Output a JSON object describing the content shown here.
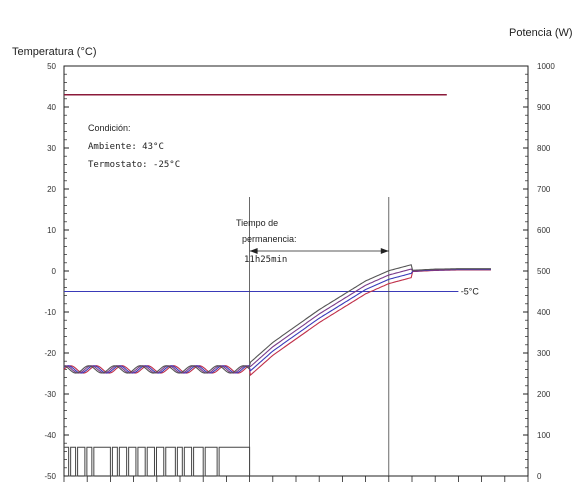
{
  "chart_data": {
    "type": "line",
    "ylabel_left": "Temperatura (°C)",
    "ylabel_right": "Potencia (W)",
    "ylim_left": [
      -50,
      50
    ],
    "ylim_right": [
      0,
      1000
    ],
    "left_ticks": [
      "50",
      "40",
      "30",
      "20",
      "10",
      "0",
      "-10",
      "-20",
      "-30",
      "-40",
      "-50"
    ],
    "right_ticks": [
      "1000",
      "900",
      "800",
      "700",
      "600",
      "500",
      "400",
      "300",
      "200",
      "100",
      "0"
    ],
    "ambient_line": {
      "value": 43,
      "color": "#8b1a3a"
    },
    "reference_line": {
      "value": -5,
      "label": "-5°C",
      "color": "#3a3ab8"
    },
    "condition_text": [
      "Condición:",
      "Ambiente: 43°C",
      "Termostato: -25°C"
    ],
    "dwell_annotation": {
      "lines": [
        "Tiempo de",
        "permanencia:",
        "11h25min"
      ],
      "start_fraction": 0.4,
      "end_fraction": 0.7
    },
    "temperature_curve": {
      "colors": [
        "#c0304a",
        "#3a3ab8",
        "#7a3a8a",
        "#555555"
      ],
      "points": [
        [
          0.0,
          -24
        ],
        [
          0.05,
          -24
        ],
        [
          0.1,
          -24
        ],
        [
          0.15,
          -24
        ],
        [
          0.2,
          -24
        ],
        [
          0.25,
          -24
        ],
        [
          0.3,
          -24
        ],
        [
          0.35,
          -24
        ],
        [
          0.4,
          -24
        ],
        [
          0.45,
          -19
        ],
        [
          0.5,
          -15
        ],
        [
          0.55,
          -11
        ],
        [
          0.6,
          -7.5
        ],
        [
          0.65,
          -4
        ],
        [
          0.7,
          -1.5
        ],
        [
          0.75,
          0
        ],
        [
          0.8,
          0.3
        ],
        [
          0.85,
          0.4
        ],
        [
          0.9,
          0.4
        ],
        [
          0.92,
          0.4
        ]
      ],
      "oscillation_until": 0.4
    },
    "power_trace": {
      "on_level_w": 70,
      "off_level_w": 0,
      "active_until": 0.4,
      "color": "#444444"
    }
  }
}
